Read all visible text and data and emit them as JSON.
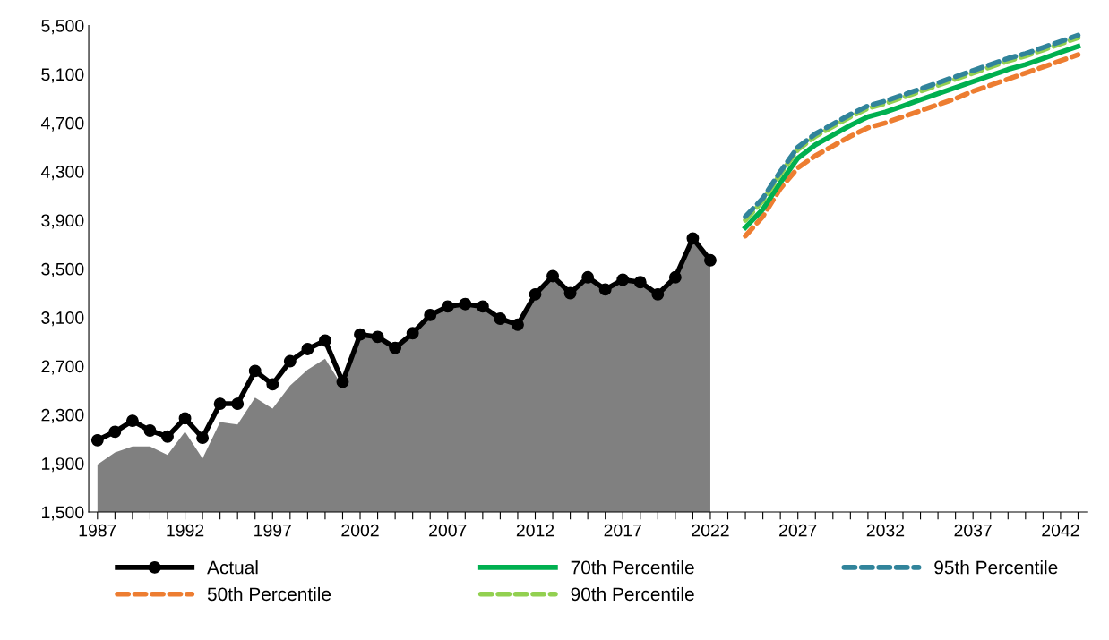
{
  "chart_data": {
    "type": "line",
    "xlim": [
      1986.5,
      2043.5
    ],
    "xticks": [
      {
        "value": 1987,
        "label": "1987"
      },
      {
        "value": 1988,
        "label": null
      },
      {
        "value": 1989,
        "label": null
      },
      {
        "value": 1990,
        "label": null
      },
      {
        "value": 1991,
        "label": null
      },
      {
        "value": 1992,
        "label": "1992"
      },
      {
        "value": 1993,
        "label": null
      },
      {
        "value": 1994,
        "label": null
      },
      {
        "value": 1995,
        "label": null
      },
      {
        "value": 1996,
        "label": null
      },
      {
        "value": 1997,
        "label": "1997"
      },
      {
        "value": 1998,
        "label": null
      },
      {
        "value": 1999,
        "label": null
      },
      {
        "value": 2000,
        "label": null
      },
      {
        "value": 2001,
        "label": null
      },
      {
        "value": 2002,
        "label": "2002"
      },
      {
        "value": 2003,
        "label": null
      },
      {
        "value": 2004,
        "label": null
      },
      {
        "value": 2005,
        "label": null
      },
      {
        "value": 2006,
        "label": null
      },
      {
        "value": 2007,
        "label": "2007"
      },
      {
        "value": 2008,
        "label": null
      },
      {
        "value": 2009,
        "label": null
      },
      {
        "value": 2010,
        "label": null
      },
      {
        "value": 2011,
        "label": null
      },
      {
        "value": 2012,
        "label": "2012"
      },
      {
        "value": 2013,
        "label": null
      },
      {
        "value": 2014,
        "label": null
      },
      {
        "value": 2015,
        "label": null
      },
      {
        "value": 2016,
        "label": null
      },
      {
        "value": 2017,
        "label": "2017"
      },
      {
        "value": 2018,
        "label": null
      },
      {
        "value": 2019,
        "label": null
      },
      {
        "value": 2020,
        "label": null
      },
      {
        "value": 2021,
        "label": null
      },
      {
        "value": 2022,
        "label": "2022"
      },
      {
        "value": 2023,
        "label": null
      },
      {
        "value": 2024,
        "label": null
      },
      {
        "value": 2025,
        "label": null
      },
      {
        "value": 2026,
        "label": null
      },
      {
        "value": 2027,
        "label": "2027"
      },
      {
        "value": 2028,
        "label": null
      },
      {
        "value": 2029,
        "label": null
      },
      {
        "value": 2030,
        "label": null
      },
      {
        "value": 2031,
        "label": null
      },
      {
        "value": 2032,
        "label": "2032"
      },
      {
        "value": 2033,
        "label": null
      },
      {
        "value": 2034,
        "label": null
      },
      {
        "value": 2035,
        "label": null
      },
      {
        "value": 2036,
        "label": null
      },
      {
        "value": 2037,
        "label": "2037"
      },
      {
        "value": 2038,
        "label": null
      },
      {
        "value": 2039,
        "label": null
      },
      {
        "value": 2040,
        "label": null
      },
      {
        "value": 2041,
        "label": null
      },
      {
        "value": 2042,
        "label": "2042"
      },
      {
        "value": 2043,
        "label": null
      }
    ],
    "ylim": [
      1500,
      5500
    ],
    "yticks": [
      {
        "value": 1500,
        "label": "1,500"
      },
      {
        "value": 1900,
        "label": "1,900"
      },
      {
        "value": 2300,
        "label": "2,300"
      },
      {
        "value": 2700,
        "label": "2,700"
      },
      {
        "value": 3100,
        "label": "3,100"
      },
      {
        "value": 3500,
        "label": "3,500"
      },
      {
        "value": 3900,
        "label": "3,900"
      },
      {
        "value": 4300,
        "label": "4,300"
      },
      {
        "value": 4700,
        "label": "4,700"
      },
      {
        "value": 5100,
        "label": "5,100"
      },
      {
        "value": 5500,
        "label": "5,500"
      }
    ],
    "grid": false,
    "legend": "bottom",
    "series": [
      {
        "type": "area",
        "color": "#808080",
        "x": [
          1987,
          1988,
          1989,
          1990,
          1991,
          1992,
          1993,
          1994,
          1995,
          1996,
          1997,
          1998,
          1999,
          2000,
          2001,
          2002,
          2003,
          2004,
          2005,
          2006,
          2007,
          2008,
          2009,
          2010,
          2011,
          2012,
          2013,
          2014,
          2015,
          2016,
          2017,
          2018,
          2019,
          2020,
          2021,
          2022
        ],
        "values": [
          1890,
          1990,
          2040,
          2040,
          1970,
          2160,
          1940,
          2240,
          2220,
          2440,
          2350,
          2540,
          2670,
          2760,
          2530,
          2960,
          2940,
          2850,
          2970,
          3120,
          3190,
          3210,
          3190,
          3090,
          3040,
          3290,
          3440,
          3300,
          3430,
          3330,
          3410,
          3390,
          3290,
          3430,
          3750,
          3570
        ]
      },
      {
        "name": "Actual",
        "color": "#000000",
        "marker": "circle",
        "line_style": "solid",
        "x": [
          1987,
          1988,
          1989,
          1990,
          1991,
          1992,
          1993,
          1994,
          1995,
          1996,
          1997,
          1998,
          1999,
          2000,
          2001,
          2002,
          2003,
          2004,
          2005,
          2006,
          2007,
          2008,
          2009,
          2010,
          2011,
          2012,
          2013,
          2014,
          2015,
          2016,
          2017,
          2018,
          2019,
          2020,
          2021,
          2022
        ],
        "values": [
          2090,
          2160,
          2250,
          2170,
          2120,
          2270,
          2110,
          2390,
          2390,
          2660,
          2550,
          2740,
          2840,
          2910,
          2570,
          2960,
          2940,
          2850,
          2970,
          3120,
          3190,
          3210,
          3190,
          3090,
          3040,
          3290,
          3440,
          3300,
          3430,
          3330,
          3410,
          3390,
          3290,
          3430,
          3750,
          3570
        ]
      },
      {
        "name": "50th Percentile",
        "color": "#ed7d31",
        "marker": "none",
        "line_style": "dashed",
        "x": [
          2024,
          2025,
          2026,
          2027,
          2028,
          2029,
          2030,
          2031,
          2032,
          2033,
          2034,
          2035,
          2036,
          2037,
          2038,
          2039,
          2040,
          2041,
          2042,
          2043
        ],
        "values": [
          3770,
          3930,
          4160,
          4330,
          4430,
          4510,
          4590,
          4660,
          4700,
          4750,
          4800,
          4850,
          4900,
          4960,
          5010,
          5060,
          5110,
          5160,
          5210,
          5260
        ]
      },
      {
        "name": "70th Percentile",
        "color": "#00b050",
        "marker": "none",
        "line_style": "solid",
        "x": [
          2024,
          2025,
          2026,
          2027,
          2028,
          2029,
          2030,
          2031,
          2032,
          2033,
          2034,
          2035,
          2036,
          2037,
          2038,
          2039,
          2040,
          2041,
          2042,
          2043
        ],
        "values": [
          3840,
          3990,
          4210,
          4410,
          4520,
          4600,
          4680,
          4750,
          4790,
          4840,
          4890,
          4940,
          4990,
          5040,
          5090,
          5140,
          5180,
          5230,
          5280,
          5330
        ]
      },
      {
        "name": "90th Percentile",
        "color": "#92d050",
        "marker": "none",
        "line_style": "dashed",
        "x": [
          2024,
          2025,
          2026,
          2027,
          2028,
          2029,
          2030,
          2031,
          2032,
          2033,
          2034,
          2035,
          2036,
          2037,
          2038,
          2039,
          2040,
          2041,
          2042,
          2043
        ],
        "values": [
          3900,
          4060,
          4280,
          4480,
          4590,
          4670,
          4750,
          4820,
          4860,
          4910,
          4960,
          5010,
          5060,
          5110,
          5160,
          5210,
          5250,
          5300,
          5350,
          5400
        ]
      },
      {
        "name": "95th Percentile",
        "color": "#31849b",
        "marker": "none",
        "line_style": "dashed",
        "x": [
          2024,
          2025,
          2026,
          2027,
          2028,
          2029,
          2030,
          2031,
          2032,
          2033,
          2034,
          2035,
          2036,
          2037,
          2038,
          2039,
          2040,
          2041,
          2042,
          2043
        ],
        "values": [
          3930,
          4080,
          4300,
          4500,
          4610,
          4690,
          4770,
          4840,
          4880,
          4930,
          4980,
          5030,
          5080,
          5130,
          5180,
          5230,
          5270,
          5320,
          5370,
          5420
        ]
      }
    ]
  }
}
